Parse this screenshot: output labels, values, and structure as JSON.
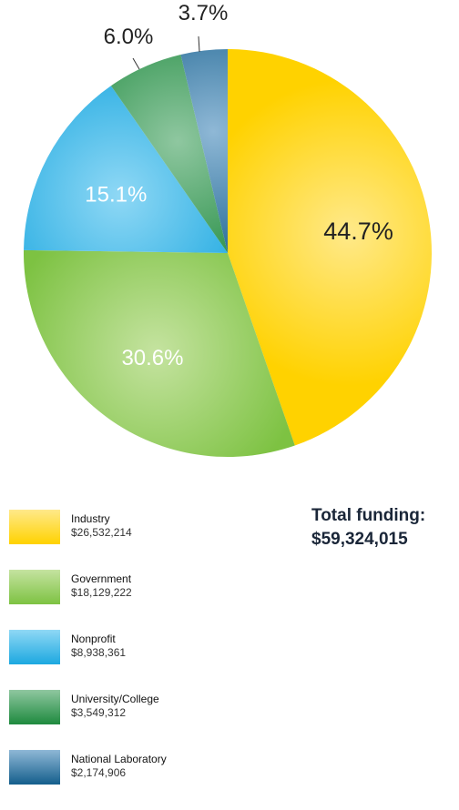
{
  "chart_data": {
    "type": "pie",
    "slices": [
      {
        "name": "Industry",
        "amount": "$26,532,214",
        "percent": 44.7,
        "label": "44.7%",
        "color": "#ffd200",
        "label_color": "#222222",
        "highlight": "#ffe98a"
      },
      {
        "name": "Government",
        "amount": "$18,129,222",
        "percent": 30.6,
        "label": "30.6%",
        "color": "#7dc242",
        "label_color": "#ffffff",
        "highlight": "#c5e3a0"
      },
      {
        "name": "Nonprofit",
        "amount": "$8,938,361",
        "percent": 15.1,
        "label": "15.1%",
        "color": "#1ca8e0",
        "label_color": "#ffffff",
        "highlight": "#8fd8f5"
      },
      {
        "name": "University/College",
        "amount": "$3,549,312",
        "percent": 6.0,
        "label": "6.0%",
        "color": "#1e8a3e",
        "label_color": "#222222",
        "highlight": "#8fc7a0"
      },
      {
        "name": "National Laboratory",
        "amount": "$2,174,906",
        "percent": 3.7,
        "label": "3.7%",
        "color": "#145e8c",
        "label_color": "#222222",
        "highlight": "#8fb8d6"
      }
    ]
  },
  "total": {
    "label": "Total funding:",
    "value": "$59,324,015"
  }
}
